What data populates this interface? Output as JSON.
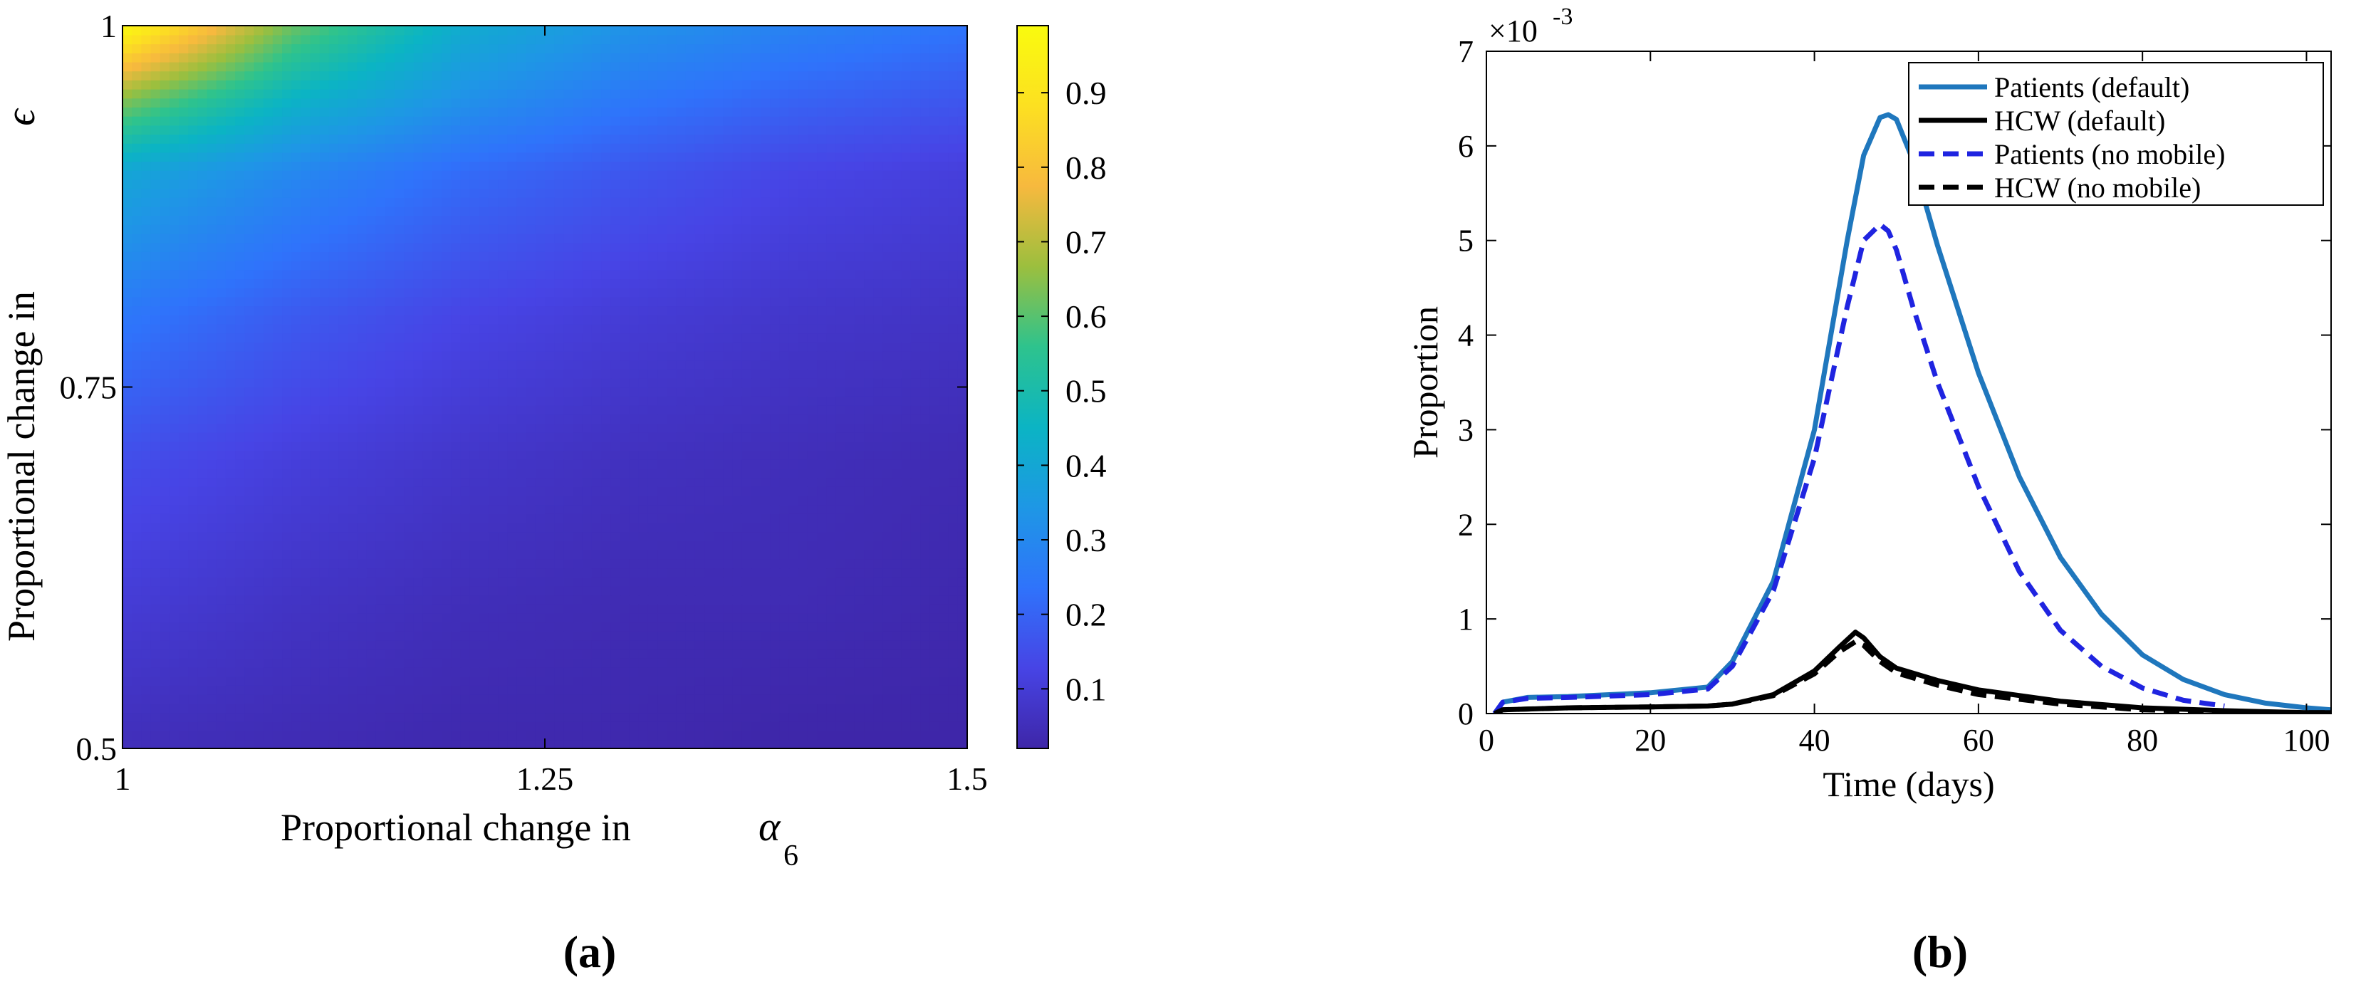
{
  "panel_labels": [
    "(a)",
    "(b)"
  ],
  "chart_data": [
    {
      "type": "heatmap",
      "xlabel": "Proportional change in",
      "xlabel_symbol": "α",
      "xlabel_symbol_sub": "6",
      "ylabel": "Proportional change in",
      "ylabel_symbol": "ϵ",
      "xlim": [
        1,
        1.5
      ],
      "ylim": [
        0.5,
        1
      ],
      "xticks": [
        "1",
        "1.25",
        "1.5"
      ],
      "yticks": [
        "0.5",
        "0.75",
        "1"
      ],
      "colorbar": {
        "range": [
          0.02,
          0.99
        ],
        "ticks": [
          "0.1",
          "0.2",
          "0.3",
          "0.4",
          "0.5",
          "0.6",
          "0.7",
          "0.8",
          "0.9"
        ],
        "colormap": [
          "#3e26a8",
          "#4744e5",
          "#2f73fb",
          "#1e97e5",
          "#0bb4c4",
          "#2ec38d",
          "#9cbf3e",
          "#f7b93e",
          "#fce021",
          "#f9fb0e"
        ]
      },
      "x": [
        1.0,
        1.1,
        1.2,
        1.3,
        1.4,
        1.5
      ],
      "y": [
        0.5,
        0.6,
        0.7,
        0.8,
        0.9,
        0.95,
        1.0
      ],
      "z": [
        [
          0.05,
          0.04,
          0.03,
          0.03,
          0.02,
          0.02
        ],
        [
          0.1,
          0.07,
          0.05,
          0.04,
          0.04,
          0.03
        ],
        [
          0.15,
          0.11,
          0.08,
          0.06,
          0.05,
          0.04
        ],
        [
          0.25,
          0.18,
          0.13,
          0.1,
          0.08,
          0.07
        ],
        [
          0.4,
          0.3,
          0.22,
          0.17,
          0.13,
          0.11
        ],
        [
          0.65,
          0.45,
          0.33,
          0.25,
          0.2,
          0.17
        ],
        [
          0.98,
          0.62,
          0.42,
          0.33,
          0.28,
          0.24
        ]
      ]
    },
    {
      "type": "line",
      "xlabel": "Time (days)",
      "ylabel": "Proportion",
      "y_multiplier": "×10",
      "y_multiplier_exp": "-3",
      "xlim": [
        0,
        103
      ],
      "ylim": [
        0,
        7
      ],
      "xticks": [
        "0",
        "20",
        "40",
        "60",
        "80",
        "100"
      ],
      "yticks": [
        "0",
        "1",
        "2",
        "3",
        "4",
        "5",
        "6",
        "7"
      ],
      "legend_position": "top-right",
      "series": [
        {
          "name": "Patients (default)",
          "color": "#1f77bd",
          "dash": "solid",
          "x": [
            1,
            2,
            5,
            10,
            20,
            27,
            30,
            35,
            40,
            44,
            46,
            48,
            49,
            50,
            52,
            55,
            60,
            65,
            70,
            75,
            80,
            85,
            90,
            95,
            100,
            103
          ],
          "y": [
            0,
            0.12,
            0.17,
            0.18,
            0.22,
            0.28,
            0.55,
            1.4,
            3.0,
            5.0,
            5.9,
            6.3,
            6.33,
            6.28,
            5.85,
            4.95,
            3.6,
            2.5,
            1.65,
            1.05,
            0.62,
            0.36,
            0.2,
            0.11,
            0.06,
            0.04
          ]
        },
        {
          "name": "HCW (default)",
          "color": "#000000",
          "dash": "solid",
          "x": [
            1,
            2,
            10,
            20,
            27,
            30,
            35,
            40,
            43,
            45,
            46,
            48,
            50,
            55,
            60,
            70,
            80,
            90,
            100,
            103
          ],
          "y": [
            0,
            0.04,
            0.06,
            0.07,
            0.08,
            0.1,
            0.2,
            0.45,
            0.7,
            0.86,
            0.8,
            0.6,
            0.48,
            0.35,
            0.25,
            0.13,
            0.06,
            0.03,
            0.01,
            0.01
          ]
        },
        {
          "name": "Patients (no mobile)",
          "color": "#1f24e0",
          "dash": "dashed",
          "x": [
            1,
            2,
            5,
            10,
            20,
            27,
            30,
            35,
            40,
            44,
            46,
            48,
            49,
            50,
            52,
            55,
            60,
            65,
            70,
            75,
            80,
            85,
            90
          ],
          "y": [
            0,
            0.12,
            0.16,
            0.17,
            0.2,
            0.26,
            0.5,
            1.3,
            2.7,
            4.3,
            5.0,
            5.17,
            5.1,
            4.9,
            4.3,
            3.5,
            2.4,
            1.5,
            0.88,
            0.5,
            0.27,
            0.14,
            0.08
          ]
        },
        {
          "name": "HCW (no mobile)",
          "color": "#000000",
          "dash": "dashed",
          "x": [
            1,
            2,
            10,
            20,
            27,
            30,
            35,
            40,
            43,
            45,
            46,
            48,
            50,
            55,
            60,
            70,
            80,
            90,
            100,
            103
          ],
          "y": [
            0,
            0.04,
            0.06,
            0.07,
            0.08,
            0.1,
            0.19,
            0.42,
            0.65,
            0.76,
            0.72,
            0.55,
            0.43,
            0.3,
            0.2,
            0.1,
            0.04,
            0.02,
            0.01,
            0.01
          ]
        }
      ]
    }
  ]
}
